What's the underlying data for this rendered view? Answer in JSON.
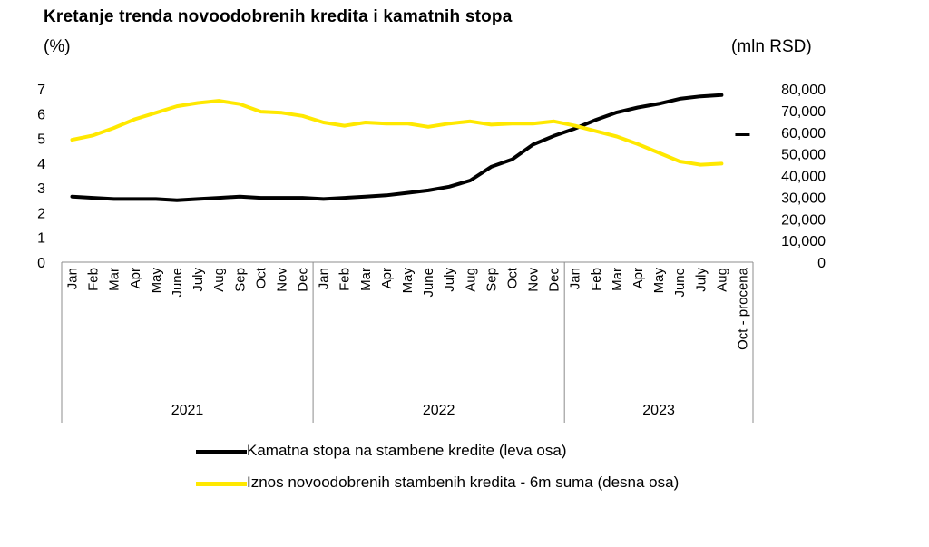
{
  "chart_data": {
    "type": "line",
    "title": "Kretanje trenda novoodobrenih kredita i kamatnih stopa",
    "ylabel_left": "(%)",
    "ylabel_right": "(mln RSD)",
    "y_left_ticks": [
      "0",
      "1",
      "2",
      "3",
      "4",
      "5",
      "6",
      "7"
    ],
    "y_right_ticks": [
      "0",
      "10,000",
      "20,000",
      "30,000",
      "40,000",
      "50,000",
      "60,000",
      "70,000",
      "80,000"
    ],
    "ylim_left": [
      0,
      7
    ],
    "ylim_right": [
      0,
      80000
    ],
    "categories": [
      "Jan",
      "Feb",
      "Mar",
      "Apr",
      "May",
      "June",
      "July",
      "Aug",
      "Sep",
      "Oct",
      "Nov",
      "Dec",
      "Jan",
      "Feb",
      "Mar",
      "Apr",
      "May",
      "June",
      "July",
      "Aug",
      "Sep",
      "Oct",
      "Nov",
      "Dec",
      "Jan",
      "Feb",
      "Mar",
      "Apr",
      "May",
      "June",
      "July",
      "Aug",
      "Oct - procena"
    ],
    "years": [
      {
        "label": "2021",
        "start": 0,
        "count": 12
      },
      {
        "label": "2022",
        "start": 12,
        "count": 12
      },
      {
        "label": "2023",
        "start": 24,
        "count": 9
      }
    ],
    "series": [
      {
        "name": "Kamatna stopa na stambene kredite (leva osa)",
        "axis": "left",
        "color": "#000000",
        "values": [
          2.65,
          2.6,
          2.55,
          2.55,
          2.55,
          2.5,
          2.55,
          2.6,
          2.65,
          2.6,
          2.6,
          2.6,
          2.55,
          2.6,
          2.65,
          2.7,
          2.8,
          2.9,
          3.05,
          3.3,
          3.85,
          4.15,
          4.75,
          5.1,
          5.4,
          5.75,
          6.05,
          6.25,
          6.4,
          6.6,
          6.7,
          6.75,
          null
        ],
        "markers": [
          null,
          null,
          null,
          null,
          null,
          null,
          null,
          null,
          null,
          null,
          null,
          null,
          null,
          null,
          null,
          null,
          null,
          null,
          null,
          null,
          null,
          null,
          null,
          null,
          null,
          null,
          null,
          null,
          null,
          null,
          null,
          null,
          5.15
        ]
      },
      {
        "name": "Iznos novoodobrenih stambenih kredita - 6m suma (desna osa)",
        "axis": "right",
        "color": "#ffe800",
        "values": [
          56500,
          58500,
          62000,
          66000,
          69000,
          72000,
          73500,
          74500,
          73000,
          69500,
          69000,
          67500,
          64500,
          63000,
          64500,
          64000,
          64000,
          62500,
          64000,
          65000,
          63500,
          64000,
          64000,
          65000,
          63000,
          60500,
          58000,
          54500,
          50500,
          46500,
          45000,
          45500,
          null
        ]
      }
    ]
  }
}
